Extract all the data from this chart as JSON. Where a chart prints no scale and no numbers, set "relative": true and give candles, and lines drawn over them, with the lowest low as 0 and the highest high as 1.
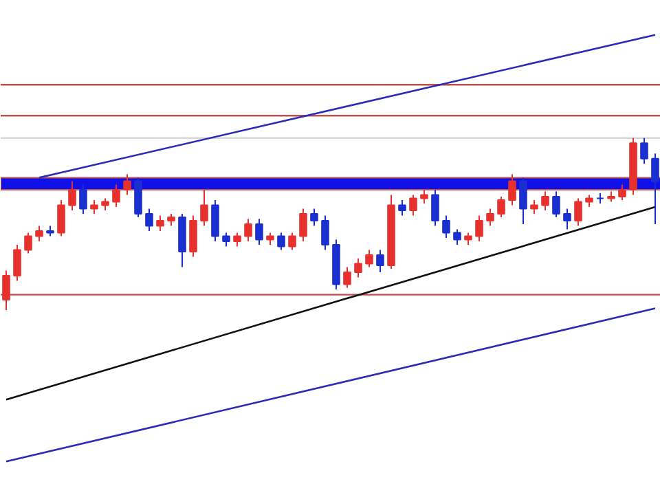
{
  "chart_data": {
    "type": "candlestick",
    "relative": true,
    "grid": false,
    "tick_labels": false,
    "categories": [
      null,
      null,
      null,
      null,
      null,
      null,
      null,
      null,
      null,
      null,
      null,
      null,
      null,
      null,
      null,
      null,
      null,
      null,
      null,
      null,
      null,
      null,
      null,
      null,
      null,
      null,
      null,
      null,
      null,
      null,
      null,
      null,
      null,
      null,
      null,
      null,
      null,
      null,
      null,
      null,
      null,
      null,
      null,
      null,
      null,
      null,
      null,
      null,
      null,
      null,
      null,
      null,
      null,
      null,
      null,
      null,
      null,
      null,
      null,
      null
    ],
    "ohlc": [
      [
        0.06,
        0.23,
        0,
        0.2
      ],
      [
        0.2,
        0.38,
        0.17,
        0.35
      ],
      [
        0.35,
        0.45,
        0.33,
        0.43
      ],
      [
        0.43,
        0.49,
        0.4,
        0.46
      ],
      [
        0.46,
        0.49,
        0.43,
        0.45
      ],
      [
        0.45,
        0.64,
        0.43,
        0.61
      ],
      [
        0.61,
        0.75,
        0.58,
        0.7
      ],
      [
        0.7,
        0.73,
        0.56,
        0.59
      ],
      [
        0.59,
        0.64,
        0.56,
        0.61
      ],
      [
        0.61,
        0.65,
        0.58,
        0.63
      ],
      [
        0.63,
        0.73,
        0.6,
        0.7
      ],
      [
        0.7,
        0.79,
        0.67,
        0.75
      ],
      [
        0.75,
        0.77,
        0.54,
        0.56
      ],
      [
        0.56,
        0.59,
        0.46,
        0.49
      ],
      [
        0.49,
        0.55,
        0.46,
        0.52
      ],
      [
        0.52,
        0.56,
        0.49,
        0.54
      ],
      [
        0.54,
        0.56,
        0.25,
        0.34
      ],
      [
        0.34,
        0.55,
        0.31,
        0.52
      ],
      [
        0.52,
        0.7,
        0.49,
        0.61
      ],
      [
        0.61,
        0.64,
        0.4,
        0.43
      ],
      [
        0.43,
        0.45,
        0.37,
        0.4
      ],
      [
        0.4,
        0.45,
        0.37,
        0.43
      ],
      [
        0.43,
        0.53,
        0.4,
        0.5
      ],
      [
        0.5,
        0.53,
        0.38,
        0.41
      ],
      [
        0.41,
        0.45,
        0.38,
        0.43
      ],
      [
        0.43,
        0.45,
        0.35,
        0.37
      ],
      [
        0.37,
        0.45,
        0.35,
        0.43
      ],
      [
        0.43,
        0.59,
        0.4,
        0.56
      ],
      [
        0.56,
        0.59,
        0.49,
        0.52
      ],
      [
        0.52,
        0.55,
        0.35,
        0.38
      ],
      [
        0.38,
        0.41,
        0.12,
        0.15
      ],
      [
        0.15,
        0.25,
        0.13,
        0.22
      ],
      [
        0.22,
        0.3,
        0.19,
        0.27
      ],
      [
        0.27,
        0.35,
        0.25,
        0.32
      ],
      [
        0.32,
        0.35,
        0.22,
        0.26
      ],
      [
        0.26,
        0.67,
        0.24,
        0.61
      ],
      [
        0.61,
        0.64,
        0.55,
        0.58
      ],
      [
        0.58,
        0.67,
        0.55,
        0.65
      ],
      [
        0.65,
        0.7,
        0.62,
        0.67
      ],
      [
        0.67,
        0.7,
        0.49,
        0.52
      ],
      [
        0.52,
        0.55,
        0.42,
        0.45
      ],
      [
        0.45,
        0.47,
        0.38,
        0.41
      ],
      [
        0.41,
        0.45,
        0.38,
        0.43
      ],
      [
        0.43,
        0.55,
        0.4,
        0.52
      ],
      [
        0.52,
        0.59,
        0.49,
        0.56
      ],
      [
        0.56,
        0.66,
        0.54,
        0.64
      ],
      [
        0.64,
        0.79,
        0.61,
        0.75
      ],
      [
        0.75,
        0.77,
        0.5,
        0.59
      ],
      [
        0.59,
        0.64,
        0.56,
        0.61
      ],
      [
        0.61,
        0.69,
        0.58,
        0.66
      ],
      [
        0.66,
        0.69,
        0.54,
        0.56
      ],
      [
        0.56,
        0.59,
        0.47,
        0.52
      ],
      [
        0.52,
        0.65,
        0.49,
        0.63
      ],
      [
        0.63,
        0.67,
        0.6,
        0.65
      ],
      [
        0.65,
        0.68,
        0.62,
        0.65
      ],
      [
        0.65,
        0.69,
        0.63,
        0.66
      ],
      [
        0.66,
        0.73,
        0.64,
        0.7
      ],
      [
        0.7,
        1,
        0.67,
        0.97
      ],
      [
        0.97,
        1,
        0.85,
        0.88
      ],
      [
        0.88,
        0.91,
        0.5,
        0.75
      ]
    ],
    "colors": [
      "#e8302c",
      "#e8302c",
      "#e8302c",
      "#e8302c",
      "#1a2fd0",
      "#e8302c",
      "#e8302c",
      "#1a2fd0",
      "#e8302c",
      "#e8302c",
      "#e8302c",
      "#e8302c",
      "#1a2fd0",
      "#1a2fd0",
      "#e8302c",
      "#e8302c",
      "#1a2fd0",
      "#e8302c",
      "#e8302c",
      "#1a2fd0",
      "#1a2fd0",
      "#e8302c",
      "#e8302c",
      "#1a2fd0",
      "#e8302c",
      "#1a2fd0",
      "#e8302c",
      "#e8302c",
      "#1a2fd0",
      "#1a2fd0",
      "#1a2fd0",
      "#e8302c",
      "#e8302c",
      "#e8302c",
      "#1a2fd0",
      "#e8302c",
      "#1a2fd0",
      "#e8302c",
      "#e8302c",
      "#1a2fd0",
      "#1a2fd0",
      "#1a2fd0",
      "#e8302c",
      "#e8302c",
      "#e8302c",
      "#e8302c",
      "#e8302c",
      "#1a2fd0",
      "#e8302c",
      "#e8302c",
      "#1a2fd0",
      "#1a2fd0",
      "#e8302c",
      "#e8302c",
      "#1a2fd0",
      "#e8302c",
      "#e8302c",
      "#e8302c",
      "#1a2fd0",
      "#1a2fd0"
    ],
    "series": [
      {
        "type": "line",
        "color": "#2b2bb8",
        "values": [
          null,
          null,
          null,
          0.77,
          null,
          null,
          null,
          null,
          null,
          null,
          null,
          null,
          null,
          null,
          null,
          null,
          null,
          null,
          null,
          null,
          null,
          null,
          null,
          null,
          null,
          null,
          null,
          null,
          null,
          null,
          null,
          null,
          null,
          null,
          null,
          null,
          null,
          null,
          null,
          null,
          null,
          null,
          null,
          null,
          null,
          null,
          null,
          null,
          null,
          null,
          null,
          null,
          null,
          null,
          null,
          null,
          null,
          null,
          null,
          1.6
        ]
      },
      {
        "type": "line",
        "color": "#111111",
        "values": [
          -0.52,
          null,
          null,
          null,
          null,
          null,
          null,
          null,
          null,
          null,
          null,
          null,
          null,
          null,
          null,
          null,
          null,
          null,
          null,
          null,
          null,
          null,
          null,
          null,
          null,
          null,
          null,
          null,
          null,
          null,
          null,
          null,
          null,
          null,
          null,
          null,
          null,
          null,
          null,
          null,
          null,
          null,
          null,
          null,
          null,
          null,
          null,
          null,
          null,
          null,
          null,
          null,
          null,
          null,
          null,
          null,
          null,
          null,
          null,
          0.6
        ]
      },
      {
        "type": "line",
        "color": "#2b2bb8",
        "values": [
          -0.88,
          null,
          null,
          null,
          null,
          null,
          null,
          null,
          null,
          null,
          null,
          null,
          null,
          null,
          null,
          null,
          null,
          null,
          null,
          null,
          null,
          null,
          null,
          null,
          null,
          null,
          null,
          null,
          null,
          null,
          null,
          null,
          null,
          null,
          null,
          null,
          null,
          null,
          null,
          null,
          null,
          null,
          null,
          null,
          null,
          null,
          null,
          null,
          null,
          null,
          null,
          null,
          null,
          null,
          null,
          null,
          null,
          null,
          null,
          0.01
        ]
      }
    ],
    "ref_lines": [
      {
        "axis": "y",
        "value": 1.31,
        "color": "#c0504d"
      },
      {
        "axis": "y",
        "value": 1.13,
        "color": "#c0504d"
      },
      {
        "axis": "y",
        "value": 1.0,
        "color": "#d8d8d8"
      },
      {
        "axis": "y",
        "value": 0.09,
        "color": "#c0504d"
      }
    ],
    "bands": [
      {
        "axis": "y",
        "from": 0.7,
        "to": 0.77,
        "color": "#1010e8"
      }
    ]
  }
}
